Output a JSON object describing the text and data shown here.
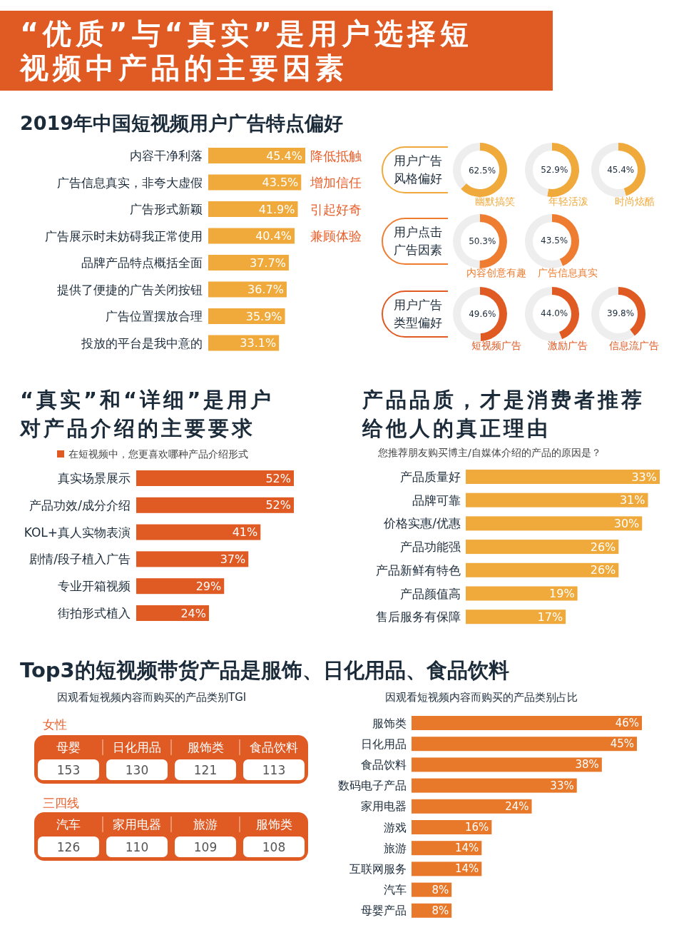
{
  "chart_data": [
    {
      "type": "other",
      "title": "“优质”与“真实”是用户选择短视频中产品的主要因素"
    },
    {
      "type": "bar",
      "orientation": "horizontal",
      "title": "2019年中国短视频用户广告特点偏好",
      "categories": [
        "内容干净利落",
        "广告信息真实，非夸大虚假",
        "广告形式新颖",
        "广告展示时未妨碍我正常使用",
        "品牌产品特点概括全面",
        "提供了便捷的广告关闭按钮",
        "广告位置摆放合理",
        "投放的平台是我中意的"
      ],
      "values": [
        45.4,
        43.5,
        41.9,
        40.4,
        37.7,
        36.7,
        35.9,
        33.1
      ],
      "color": "#f0aa3c",
      "value_labels": [
        "45.4%",
        "43.5%",
        "41.9%",
        "40.4%",
        "37.7%",
        "36.7%",
        "35.9%",
        "33.1%"
      ],
      "annotations": [
        "降低抵触",
        "增加信任",
        "引起好奇",
        "兼顾体验"
      ]
    },
    {
      "type": "other",
      "title": "用户广告风格偏好"
    },
    {
      "type": "donut",
      "categories": [
        "幽默搞笑",
        null
      ],
      "values": [
        62.5,
        37.5
      ],
      "colors": [
        "#f0aa3c",
        "#eeeeee"
      ],
      "value_labels": [
        "62.5%",
        null
      ]
    },
    {
      "type": "donut",
      "categories": [
        "年轻活泼",
        null
      ],
      "values": [
        52.9,
        47.1
      ],
      "colors": [
        "#f0aa3c",
        "#eeeeee"
      ],
      "value_labels": [
        "52.9%",
        null
      ]
    },
    {
      "type": "donut",
      "categories": [
        "时尚炫酷",
        null
      ],
      "values": [
        45.4,
        54.6
      ],
      "colors": [
        "#f0aa3c",
        "#eeeeee"
      ],
      "value_labels": [
        "45.4%",
        null
      ]
    },
    {
      "type": "other",
      "title": "用户点击广告因素"
    },
    {
      "type": "donut",
      "categories": [
        "内容创意有趣",
        null
      ],
      "values": [
        50.3,
        49.7
      ],
      "colors": [
        "#ee7d32",
        "#eeeeee"
      ],
      "value_labels": [
        "50.3%",
        null
      ]
    },
    {
      "type": "donut",
      "categories": [
        "广告信息真实",
        null
      ],
      "values": [
        43.5,
        56.5
      ],
      "colors": [
        "#ee7d32",
        "#eeeeee"
      ],
      "value_labels": [
        "43.5%",
        null
      ]
    },
    {
      "type": "other",
      "title": "用户广告类型偏好"
    },
    {
      "type": "donut",
      "categories": [
        "短视频广告",
        null
      ],
      "values": [
        49.6,
        50.4
      ],
      "colors": [
        "#e05a24",
        "#eeeeee"
      ],
      "value_labels": [
        "49.6%",
        null
      ]
    },
    {
      "type": "donut",
      "categories": [
        "激励广告",
        null
      ],
      "values": [
        44.0,
        56.0
      ],
      "colors": [
        "#e05a24",
        "#eeeeee"
      ],
      "value_labels": [
        "44.0%",
        null
      ]
    },
    {
      "type": "donut",
      "categories": [
        "信息流广告",
        null
      ],
      "values": [
        39.8,
        60.2
      ],
      "colors": [
        "#e05a24",
        "#eeeeee"
      ],
      "value_labels": [
        "39.8%",
        null
      ]
    },
    {
      "type": "bar",
      "orientation": "horizontal",
      "title": "“真实”和“详细”是用户对产品介绍的主要要求",
      "categories": [
        "真实场景展示",
        "产品功效/成分介绍",
        "KOL+真人实物表演",
        "剧情/段子植入广告",
        "专业开箱视频",
        "街拍形式植入"
      ],
      "series": [
        {
          "name": "在短视频中，您更喜欢哪种产品介绍形式",
          "color": "#e05a24",
          "values": [
            52,
            52,
            41,
            37,
            29,
            24
          ],
          "value_labels": [
            "52%",
            "52%",
            "41%",
            "37%",
            "29%",
            "24%"
          ]
        }
      ],
      "legend": "top left"
    },
    {
      "type": "bar",
      "orientation": "horizontal",
      "title": "产品品质，才是消费者推荐给他人的真正理由",
      "subtitle": "您推荐朋友购买博主/自媒体介绍的产品的原因是？",
      "categories": [
        "产品质量好",
        "品牌可靠",
        "价格实惠/优惠",
        "产品功能强",
        "产品新鲜有特色",
        "产品颜值高",
        "售后服务有保障"
      ],
      "values": [
        33,
        31,
        30,
        26,
        26,
        19,
        17
      ],
      "color": "#f0aa3c",
      "value_labels": [
        "33%",
        "31%",
        "30%",
        "26%",
        "26%",
        "19%",
        "17%"
      ]
    },
    {
      "type": "other",
      "title": "Top3的短视频带货产品是服饰、日化用品、食品饮料"
    },
    {
      "type": "other",
      "title": "因观看短视频内容而购买的产品类别TGI",
      "subtitle": "女性",
      "categories": [
        "母婴",
        "日化用品",
        "服饰类",
        "食品饮料"
      ],
      "values": [
        153,
        130,
        121,
        113
      ],
      "data_labels": true
    },
    {
      "type": "other",
      "subtitle": "三四线",
      "categories": [
        "汽车",
        "家用电器",
        "旅游",
        "服饰类"
      ],
      "values": [
        126,
        110,
        109,
        108
      ],
      "data_labels": true
    },
    {
      "type": "bar",
      "orientation": "horizontal",
      "subtitle": "因观看短视频内容而购买的产品类别占比",
      "categories": [
        "服饰类",
        "日化用品",
        "食品饮料",
        "数码电子产品",
        "家用电器",
        "游戏",
        "旅游",
        "互联网服务",
        "汽车",
        "母婴产品"
      ],
      "values": [
        46,
        45,
        38,
        33,
        24,
        16,
        14,
        14,
        8,
        8
      ],
      "color": "#e8782a",
      "value_labels": [
        "46%",
        "45%",
        "38%",
        "33%",
        "24%",
        "16%",
        "14%",
        "14%",
        "8%",
        "8%"
      ]
    }
  ]
}
